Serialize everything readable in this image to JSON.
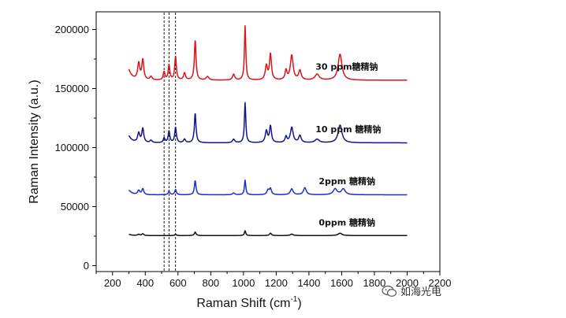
{
  "chart_data": {
    "type": "line",
    "title": "",
    "xlabel": "Raman Shift (cm",
    "xlabel_sup": "-1",
    "xlabel_end": ")",
    "ylabel": "Raman Intensity (a.u.)",
    "xlim": [
      100,
      2200
    ],
    "ylim": [
      -5000,
      215000
    ],
    "x_ticks": [
      "200",
      "400",
      "600",
      "800",
      "1000",
      "1200",
      "1400",
      "1600",
      "1800",
      "2000",
      "2200"
    ],
    "y_ticks": [
      "0",
      "50000",
      "100000",
      "150000",
      "200000"
    ],
    "x_range": [
      300,
      2000
    ],
    "reference_lines_x": [
      515,
      545,
      585
    ],
    "series": [
      {
        "name": "30 ppm糖精钠",
        "color": "#d9141a",
        "baseline": 157000,
        "start_level": 166000,
        "label_at": [
          1440,
          166000
        ],
        "peaks": [
          [
            360,
            14000,
            8
          ],
          [
            385,
            17000,
            7
          ],
          [
            435,
            3000,
            8
          ],
          [
            515,
            7000,
            6
          ],
          [
            545,
            13000,
            6
          ],
          [
            585,
            20000,
            6
          ],
          [
            640,
            6000,
            7
          ],
          [
            705,
            34000,
            6
          ],
          [
            780,
            3000,
            10
          ],
          [
            940,
            5000,
            8
          ],
          [
            1010,
            46000,
            5
          ],
          [
            1140,
            12000,
            8
          ],
          [
            1165,
            22000,
            7
          ],
          [
            1260,
            8000,
            7
          ],
          [
            1295,
            21000,
            10
          ],
          [
            1345,
            8000,
            9
          ],
          [
            1450,
            5000,
            15
          ],
          [
            1590,
            22000,
            14
          ]
        ]
      },
      {
        "name": "10 ppm 糖精钠",
        "color": "#14148c",
        "baseline": 104000,
        "start_level": 110000,
        "label_at": [
          1440,
          113000
        ],
        "peaks": [
          [
            360,
            8000,
            8
          ],
          [
            385,
            12000,
            7
          ],
          [
            435,
            2000,
            8
          ],
          [
            515,
            4000,
            6
          ],
          [
            545,
            10000,
            6
          ],
          [
            585,
            13000,
            6
          ],
          [
            640,
            3000,
            7
          ],
          [
            705,
            25000,
            6
          ],
          [
            940,
            3000,
            8
          ],
          [
            1010,
            34000,
            5
          ],
          [
            1140,
            10000,
            8
          ],
          [
            1165,
            14000,
            7
          ],
          [
            1260,
            5000,
            7
          ],
          [
            1295,
            13000,
            10
          ],
          [
            1345,
            6000,
            9
          ],
          [
            1450,
            3000,
            15
          ],
          [
            1590,
            15000,
            14
          ]
        ]
      },
      {
        "name": "2ppm 糖精钠",
        "color": "#1f2fc6",
        "baseline": 60000,
        "start_level": 64000,
        "label_at": [
          1460,
          69000
        ],
        "peaks": [
          [
            360,
            3500,
            8
          ],
          [
            385,
            5000,
            7
          ],
          [
            545,
            3000,
            6
          ],
          [
            585,
            4500,
            6
          ],
          [
            705,
            12000,
            6
          ],
          [
            940,
            1500,
            8
          ],
          [
            1010,
            12500,
            5
          ],
          [
            1150,
            4000,
            8
          ],
          [
            1165,
            5000,
            7
          ],
          [
            1295,
            5000,
            10
          ],
          [
            1375,
            6000,
            10
          ],
          [
            1560,
            5000,
            14
          ],
          [
            1610,
            5000,
            14
          ]
        ]
      },
      {
        "name": "0ppm 糖精钠",
        "color": "#111111",
        "baseline": 25500,
        "start_level": 26500,
        "label_at": [
          1460,
          34000
        ],
        "peaks": [
          [
            360,
            1000,
            8
          ],
          [
            385,
            1500,
            7
          ],
          [
            585,
            1000,
            6
          ],
          [
            705,
            3000,
            6
          ],
          [
            1010,
            4000,
            5
          ],
          [
            1165,
            2000,
            7
          ],
          [
            1295,
            1200,
            10
          ],
          [
            1590,
            2000,
            14
          ]
        ]
      }
    ]
  },
  "watermark": {
    "text": "如海光电",
    "icon": "wechat-icon"
  }
}
